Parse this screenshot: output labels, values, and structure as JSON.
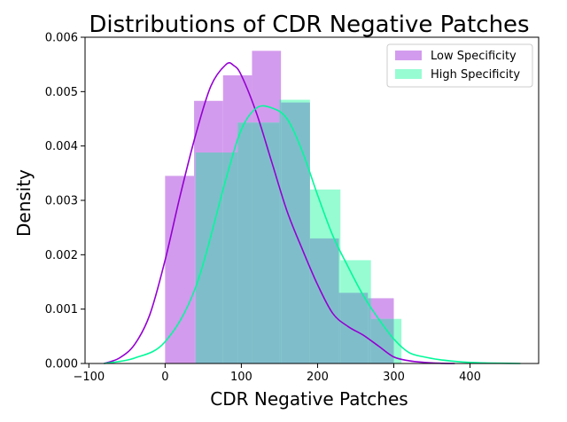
{
  "chart_data": {
    "type": "histogram",
    "title": "Distributions of CDR Negative Patches",
    "xlabel": "CDR Negative Patches",
    "ylabel": "Density",
    "xlim": [
      -105,
      490
    ],
    "ylim": [
      0,
      0.006
    ],
    "xticks": [
      -100,
      0,
      100,
      200,
      300,
      400
    ],
    "xtick_labels": [
      "−100",
      "0",
      "100",
      "200",
      "300",
      "400"
    ],
    "yticks": [
      0,
      0.001,
      0.002,
      0.003,
      0.004,
      0.005,
      0.006
    ],
    "ytick_labels": [
      "0.000",
      "0.001",
      "0.002",
      "0.003",
      "0.004",
      "0.005",
      "0.006"
    ],
    "legend_position": "top-right",
    "grid": false,
    "series": [
      {
        "name": "Low Specificity",
        "color": "#9400d3",
        "bin_edges": [
          0,
          38,
          76,
          114,
          152,
          190,
          228,
          266,
          300
        ],
        "densities": [
          0.00345,
          0.00483,
          0.0053,
          0.00575,
          0.0048,
          0.0023,
          0.0013,
          0.0012
        ],
        "kde": {
          "x": [
            -80,
            -60,
            -40,
            -20,
            0,
            20,
            40,
            60,
            80,
            90,
            100,
            120,
            140,
            160,
            180,
            200,
            220,
            240,
            260,
            280,
            300,
            320,
            340,
            360,
            380
          ],
          "y": [
            0.0,
            0.0001,
            0.00035,
            0.0009,
            0.0019,
            0.0031,
            0.0042,
            0.0051,
            0.0055,
            0.00548,
            0.0053,
            0.0046,
            0.0037,
            0.0028,
            0.0021,
            0.00145,
            0.00092,
            0.00068,
            0.00052,
            0.00032,
            0.00012,
            5e-05,
            2e-05,
            5e-06,
            0.0
          ]
        }
      },
      {
        "name": "High Specificity",
        "color": "#00fa9a",
        "bin_edges": [
          40,
          95,
          150,
          190,
          230,
          270,
          310
        ],
        "densities": [
          0.00388,
          0.00443,
          0.00485,
          0.0032,
          0.0019,
          0.00082
        ],
        "kde": {
          "x": [
            -80,
            -40,
            0,
            40,
            80,
            100,
            120,
            140,
            160,
            180,
            200,
            220,
            240,
            260,
            280,
            300,
            320,
            340,
            360,
            380,
            400,
            420,
            440,
            466
          ],
          "y": [
            0.0,
            0.0001,
            0.0004,
            0.0014,
            0.0034,
            0.0043,
            0.0047,
            0.0047,
            0.0045,
            0.0039,
            0.0031,
            0.00235,
            0.00178,
            0.00125,
            0.00082,
            0.00045,
            0.0002,
            0.00012,
            7e-05,
            4e-05,
            2e-05,
            1e-05,
            5e-06,
            0.0
          ]
        }
      }
    ]
  }
}
